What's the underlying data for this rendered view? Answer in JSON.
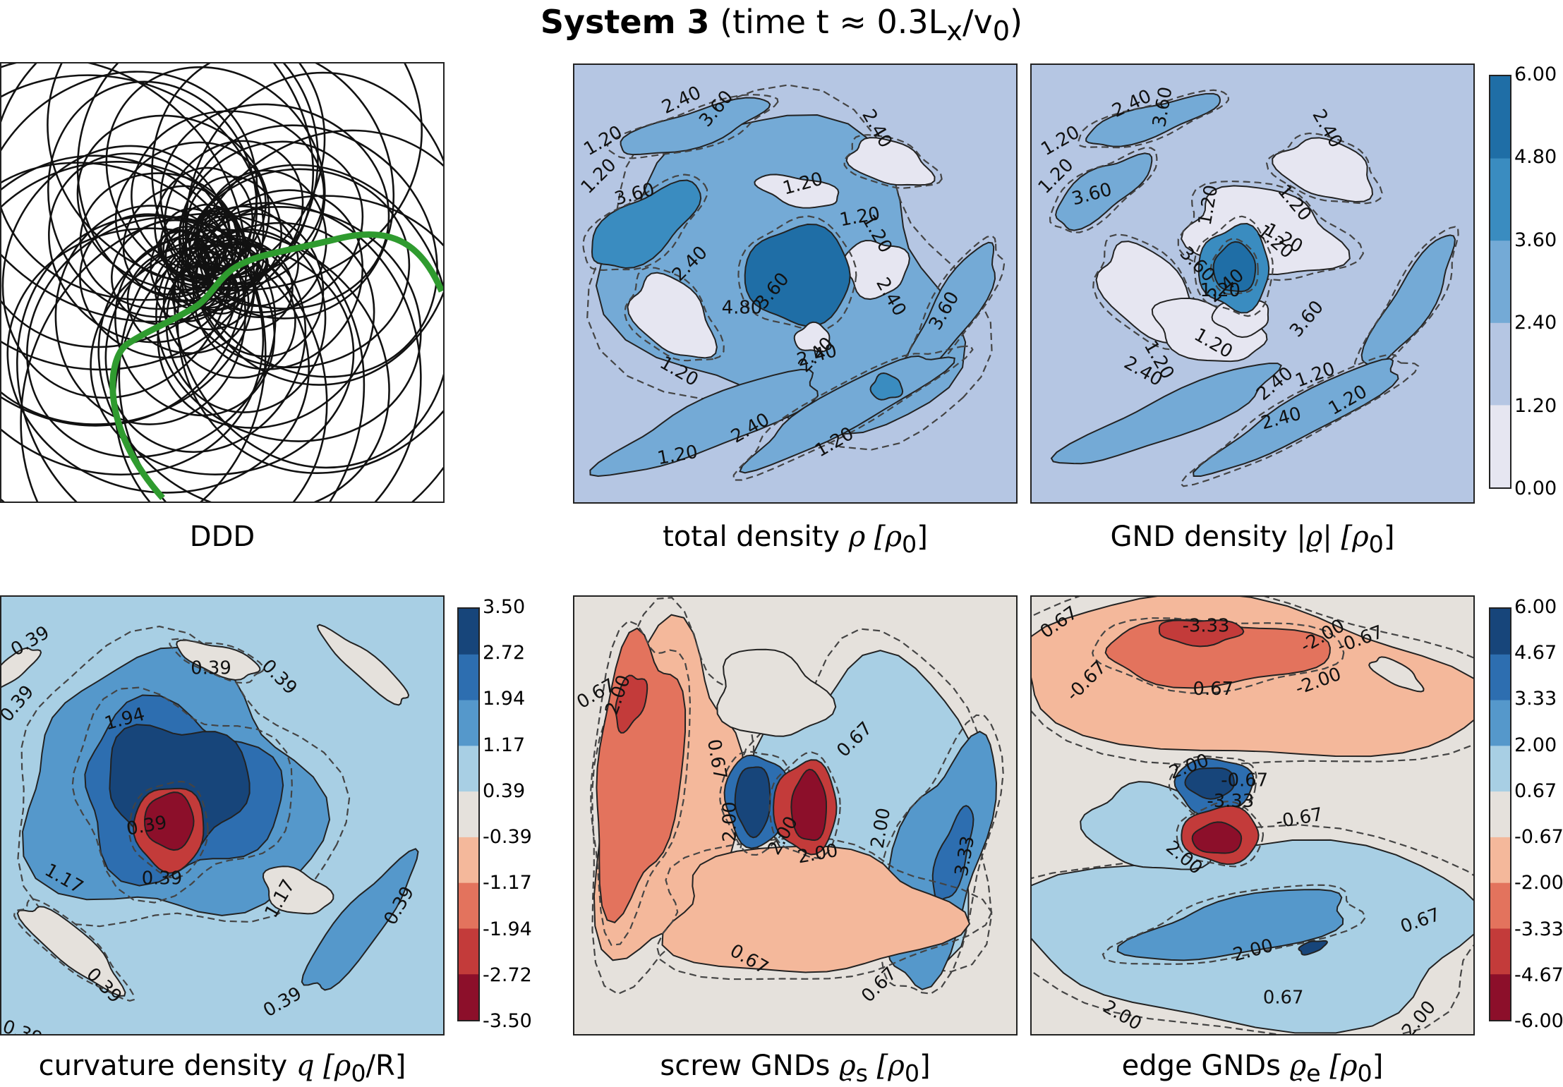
{
  "title": {
    "bold": "System 3",
    "rest": "(time t ≈ 0.3L",
    "sub": "x",
    "tail": "/v",
    "sub2": "0",
    "close": ")"
  },
  "panels": {
    "ddd": {
      "label": "DDD"
    },
    "total": {
      "label_text": "total density ",
      "label_math": "ρ [ρ",
      "label_sub": "0",
      "label_close": "]"
    },
    "gnd": {
      "label_text": "GND density ",
      "label_math": "|ϱ| [ρ",
      "label_sub": "0",
      "label_close": "]"
    },
    "curv": {
      "label_text": "curvature density ",
      "label_math": "q [ρ",
      "label_sub": "0",
      "label_close": "/R]"
    },
    "screw": {
      "label_text": "screw GNDs ",
      "label_math": "ϱ",
      "label_sub": "s",
      "label_math2": " [ρ",
      "label_sub2": "0",
      "label_close": "]"
    },
    "edge": {
      "label_text": "edge GNDs ",
      "label_math": "ϱ",
      "label_sub": "e",
      "label_math2": " [ρ",
      "label_sub2": "0",
      "label_close": "]"
    }
  },
  "colorbars": {
    "density": {
      "ticks": [
        "6.00",
        "4.80",
        "3.60",
        "2.40",
        "1.20",
        "0.00"
      ],
      "colors": [
        "#1f6ea6",
        "#3a8cc0",
        "#74aad6",
        "#b5c6e3",
        "#e6e6f1"
      ]
    },
    "curvature": {
      "ticks": [
        "3.50",
        "2.72",
        "1.94",
        "1.17",
        "0.39",
        "-0.39",
        "-1.17",
        "-1.94",
        "-2.72",
        "-3.50"
      ],
      "colors": [
        "#17457a",
        "#2d6eb0",
        "#5598cb",
        "#a8cfe4",
        "#e5e1dc",
        "#f4b89b",
        "#e3735d",
        "#c33b3a",
        "#8c0f2a"
      ]
    },
    "gnd_comp": {
      "ticks": [
        "6.00",
        "4.67",
        "3.33",
        "2.00",
        "0.67",
        "-0.67",
        "-2.00",
        "-3.33",
        "-4.67",
        "-6.00"
      ],
      "colors": [
        "#17457a",
        "#2d6eb0",
        "#5598cb",
        "#a8cfe4",
        "#e5e1dc",
        "#f4b89b",
        "#e3735d",
        "#c33b3a",
        "#8c0f2a"
      ]
    }
  },
  "contour_labels": {
    "total": [
      "1.20",
      "2.40",
      "3.60",
      "2.40",
      "1.20",
      "1.20",
      "3.60",
      "2.40",
      "1.20",
      "4.80",
      "3.60",
      "1.20",
      "2.40",
      "3.60",
      "1.20",
      "2.40",
      "2.40",
      "1.20",
      "2.40",
      "1.20"
    ],
    "gnd": [
      "1.20",
      "2.40",
      "3.60",
      "2.40",
      "1.20",
      "1.20",
      "3.60",
      "1.20",
      "1.20",
      "3.60",
      "1.20",
      "1.20",
      "2.40",
      "1.20",
      "1.20",
      "2.40",
      "3.60",
      "2.40",
      "2.40",
      "1.20",
      "1.20"
    ],
    "curv": [
      "0.39",
      "0.39",
      "0.39",
      "0.39",
      "1.94",
      "1.17",
      "0.39",
      "1.17",
      "0.39",
      "0.39",
      "0.39",
      "0.39",
      "0.39"
    ],
    "screw": [
      "0.67",
      "2.00",
      "0.67",
      "0.67",
      "3.33",
      "2.00",
      "2.00",
      "0.67",
      "2.00",
      "2.00",
      "0.67"
    ],
    "edge": [
      "0.67",
      "-3.33",
      "-2.00",
      "-0.67",
      "-0.67",
      "-2.00",
      "0.67",
      "2.00",
      "-3.33",
      "-0.67",
      "-0.67",
      "2.00",
      "2.00",
      "2.00",
      "0.67",
      "2.00",
      "0.67"
    ]
  },
  "colors": {
    "ddd_line": "#111111",
    "ddd_green": "#2f9b2f"
  },
  "chart_data": [
    {
      "type": "heatmap",
      "title": "DDD"
    },
    {
      "type": "heatmap",
      "title": "total density ρ [ρ0]",
      "zlim": [
        0,
        6
      ]
    },
    {
      "type": "heatmap",
      "title": "GND density |ϱ| [ρ0]",
      "zlim": [
        0,
        6
      ]
    },
    {
      "type": "heatmap",
      "title": "curvature density q [ρ0/R]",
      "zlim": [
        -3.5,
        3.5
      ]
    },
    {
      "type": "heatmap",
      "title": "screw GNDs ϱs [ρ0]",
      "zlim": [
        -6,
        6
      ]
    },
    {
      "type": "heatmap",
      "title": "edge GNDs ϱe [ρ0]",
      "zlim": [
        -6,
        6
      ]
    }
  ]
}
